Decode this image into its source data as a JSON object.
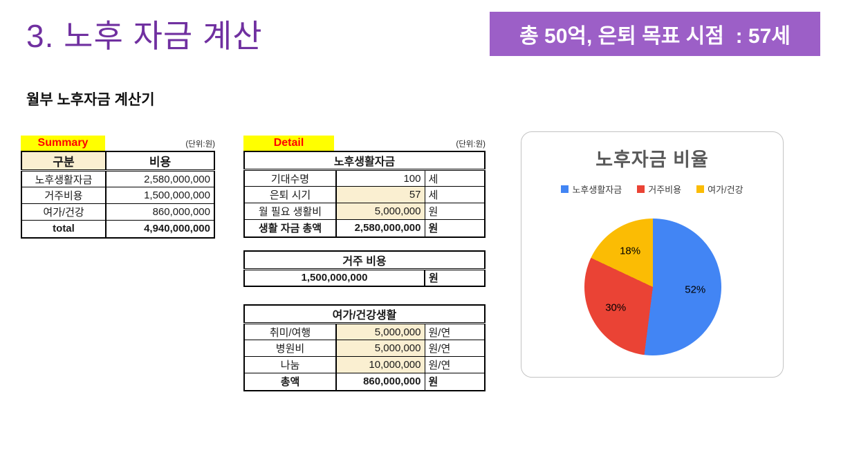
{
  "slide": {
    "title": "3. 노후 자금 계산",
    "badge": "총 50억, 은퇴 목표 시점  : 57세",
    "subtitle": "월부 노후자금 계산기"
  },
  "colors": {
    "title_purple": "#7030A0",
    "badge_bg": "#9C5FC7",
    "badge_text": "#FFFFFF",
    "caption_bg": "#FFFF00",
    "caption_text": "#FF0000",
    "input_cell_bg": "#FAEFD1",
    "input_value_text": "#BF8F00",
    "chart_title_text": "#595959"
  },
  "summary_table": {
    "caption": "Summary",
    "unit_note": "(단위:원)",
    "headers": [
      "구분",
      "비용"
    ],
    "rows": [
      {
        "label": "노후생활자금",
        "value": "2,580,000,000"
      },
      {
        "label": "거주비용",
        "value": "1,500,000,000"
      },
      {
        "label": "여가/건강",
        "value": "860,000,000"
      }
    ],
    "total": {
      "label": "total",
      "value": "4,940,000,000"
    }
  },
  "detail": {
    "caption": "Detail",
    "unit_note": "(단위:원)",
    "living_table": {
      "title": "노후생활자금",
      "rows": [
        {
          "label": "기대수명",
          "value": "100",
          "unit": "세"
        },
        {
          "label": "은퇴 시기",
          "value": "57",
          "unit": "세"
        },
        {
          "label": "월 필요 생활비",
          "value": "5,000,000",
          "unit": "원"
        }
      ],
      "total": {
        "label": "생활 자금 총액",
        "value": "2,580,000,000",
        "unit": "원"
      }
    },
    "housing_table": {
      "title": "거주 비용",
      "value": "1,500,000,000",
      "unit": "원"
    },
    "leisure_table": {
      "title": "여가/건강생활",
      "rows": [
        {
          "label": "취미/여행",
          "value": "5,000,000",
          "unit": "원/연"
        },
        {
          "label": "병원비",
          "value": "5,000,000",
          "unit": "원/연"
        },
        {
          "label": "나눔",
          "value": "10,000,000",
          "unit": "원/연"
        }
      ],
      "total": {
        "label": "총액",
        "value": "860,000,000",
        "unit": "원"
      }
    }
  },
  "chart_data": {
    "type": "pie",
    "title": "노후자금 비율",
    "labels": [
      "노후생활자금",
      "거주비용",
      "여가/건강"
    ],
    "values": [
      52,
      30,
      18
    ],
    "value_unit": "%",
    "colors": [
      "#4285F4",
      "#EA4335",
      "#FBBC04"
    ],
    "legend_position": "top",
    "start_angle_deg": 0,
    "direction": "clockwise",
    "source_amounts": [
      "2,580,000,000",
      "1,500,000,000",
      "860,000,000"
    ]
  }
}
